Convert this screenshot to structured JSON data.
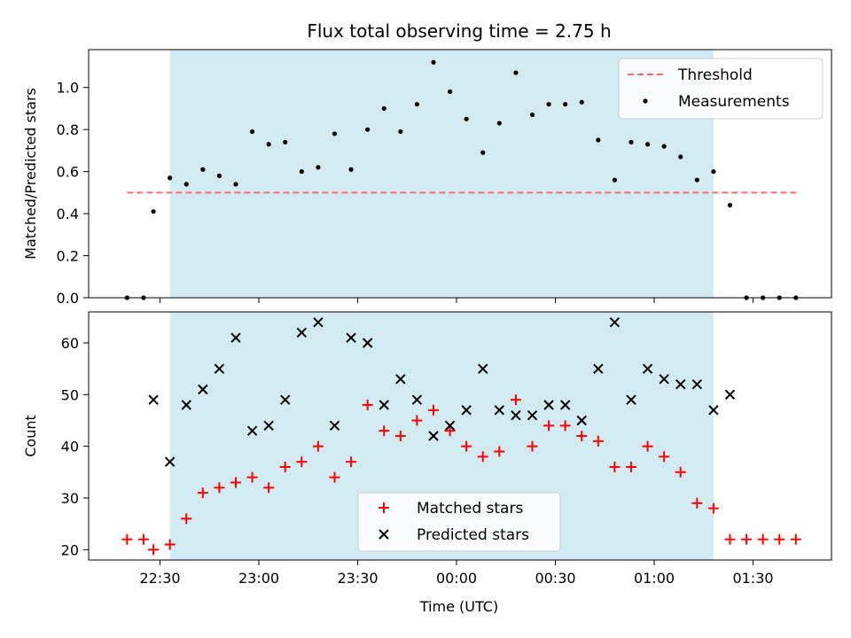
{
  "chart_data": [
    {
      "type": "scatter",
      "title": "Flux total observing time = 2.75 h",
      "ylabel": "Matched/Predicted stars",
      "xlabel": "",
      "ylim": [
        0,
        1.18
      ],
      "yticks": [
        "0.0",
        "0.2",
        "0.4",
        "0.6",
        "0.8",
        "1.0"
      ],
      "shaded_span": {
        "x_start": "22:33",
        "x_end": "01:18",
        "color": "#add8e6"
      },
      "legend_position": "top-right",
      "threshold": {
        "name": "Threshold",
        "value": 0.5,
        "x_start": "22:20",
        "x_end": "01:44",
        "color": "#ff6b6b",
        "style": "dashed"
      },
      "series": [
        {
          "name": "Measurements",
          "color": "#000000",
          "marker": "dot",
          "points": [
            {
              "x": "22:20",
              "y": 0.0
            },
            {
              "x": "22:25",
              "y": 0.0
            },
            {
              "x": "22:28",
              "y": 0.41
            },
            {
              "x": "22:33",
              "y": 0.57
            },
            {
              "x": "22:38",
              "y": 0.54
            },
            {
              "x": "22:43",
              "y": 0.61
            },
            {
              "x": "22:48",
              "y": 0.58
            },
            {
              "x": "22:53",
              "y": 0.54
            },
            {
              "x": "22:58",
              "y": 0.79
            },
            {
              "x": "23:03",
              "y": 0.73
            },
            {
              "x": "23:08",
              "y": 0.74
            },
            {
              "x": "23:13",
              "y": 0.6
            },
            {
              "x": "23:18",
              "y": 0.62
            },
            {
              "x": "23:23",
              "y": 0.78
            },
            {
              "x": "23:28",
              "y": 0.61
            },
            {
              "x": "23:33",
              "y": 0.8
            },
            {
              "x": "23:38",
              "y": 0.9
            },
            {
              "x": "23:43",
              "y": 0.79
            },
            {
              "x": "23:48",
              "y": 0.92
            },
            {
              "x": "23:53",
              "y": 1.12
            },
            {
              "x": "23:58",
              "y": 0.98
            },
            {
              "x": "00:03",
              "y": 0.85
            },
            {
              "x": "00:08",
              "y": 0.69
            },
            {
              "x": "00:13",
              "y": 0.83
            },
            {
              "x": "00:18",
              "y": 1.07
            },
            {
              "x": "00:23",
              "y": 0.87
            },
            {
              "x": "00:28",
              "y": 0.92
            },
            {
              "x": "00:33",
              "y": 0.92
            },
            {
              "x": "00:38",
              "y": 0.93
            },
            {
              "x": "00:43",
              "y": 0.75
            },
            {
              "x": "00:48",
              "y": 0.56
            },
            {
              "x": "00:53",
              "y": 0.74
            },
            {
              "x": "00:58",
              "y": 0.73
            },
            {
              "x": "01:03",
              "y": 0.72
            },
            {
              "x": "01:08",
              "y": 0.67
            },
            {
              "x": "01:13",
              "y": 0.56
            },
            {
              "x": "01:18",
              "y": 0.6
            },
            {
              "x": "01:23",
              "y": 0.44
            },
            {
              "x": "01:28",
              "y": 0.0
            },
            {
              "x": "01:33",
              "y": 0.0
            },
            {
              "x": "01:38",
              "y": 0.0
            },
            {
              "x": "01:43",
              "y": 0.0
            }
          ]
        }
      ]
    },
    {
      "type": "scatter",
      "title": "",
      "ylabel": "Count",
      "xlabel": "Time (UTC)",
      "ylim": [
        18,
        66
      ],
      "yticks": [
        "20",
        "30",
        "40",
        "50",
        "60"
      ],
      "xticks": [
        "22:30",
        "23:00",
        "23:30",
        "00:00",
        "00:30",
        "01:00",
        "01:30"
      ],
      "shaded_span": {
        "x_start": "22:33",
        "x_end": "01:18",
        "color": "#add8e6"
      },
      "legend_position": "bottom-center",
      "series": [
        {
          "name": "Matched stars",
          "color": "#ff0000",
          "marker": "plus",
          "points": [
            {
              "x": "22:20",
              "y": 22
            },
            {
              "x": "22:25",
              "y": 22
            },
            {
              "x": "22:28",
              "y": 20
            },
            {
              "x": "22:33",
              "y": 21
            },
            {
              "x": "22:38",
              "y": 26
            },
            {
              "x": "22:43",
              "y": 31
            },
            {
              "x": "22:48",
              "y": 32
            },
            {
              "x": "22:53",
              "y": 33
            },
            {
              "x": "22:58",
              "y": 34
            },
            {
              "x": "23:03",
              "y": 32
            },
            {
              "x": "23:08",
              "y": 36
            },
            {
              "x": "23:13",
              "y": 37
            },
            {
              "x": "23:18",
              "y": 40
            },
            {
              "x": "23:23",
              "y": 34
            },
            {
              "x": "23:28",
              "y": 37
            },
            {
              "x": "23:33",
              "y": 48
            },
            {
              "x": "23:38",
              "y": 43
            },
            {
              "x": "23:43",
              "y": 42
            },
            {
              "x": "23:48",
              "y": 45
            },
            {
              "x": "23:53",
              "y": 47
            },
            {
              "x": "23:58",
              "y": 43
            },
            {
              "x": "00:03",
              "y": 40
            },
            {
              "x": "00:08",
              "y": 38
            },
            {
              "x": "00:13",
              "y": 39
            },
            {
              "x": "00:18",
              "y": 49
            },
            {
              "x": "00:23",
              "y": 40
            },
            {
              "x": "00:28",
              "y": 44
            },
            {
              "x": "00:33",
              "y": 44
            },
            {
              "x": "00:38",
              "y": 42
            },
            {
              "x": "00:43",
              "y": 41
            },
            {
              "x": "00:48",
              "y": 36
            },
            {
              "x": "00:53",
              "y": 36
            },
            {
              "x": "00:58",
              "y": 40
            },
            {
              "x": "01:03",
              "y": 38
            },
            {
              "x": "01:08",
              "y": 35
            },
            {
              "x": "01:13",
              "y": 29
            },
            {
              "x": "01:18",
              "y": 28
            },
            {
              "x": "01:23",
              "y": 22
            },
            {
              "x": "01:28",
              "y": 22
            },
            {
              "x": "01:33",
              "y": 22
            },
            {
              "x": "01:38",
              "y": 22
            },
            {
              "x": "01:43",
              "y": 22
            }
          ]
        },
        {
          "name": "Predicted stars",
          "color": "#000000",
          "marker": "x",
          "points": [
            {
              "x": "22:28",
              "y": 49
            },
            {
              "x": "22:33",
              "y": 37
            },
            {
              "x": "22:38",
              "y": 48
            },
            {
              "x": "22:43",
              "y": 51
            },
            {
              "x": "22:48",
              "y": 55
            },
            {
              "x": "22:53",
              "y": 61
            },
            {
              "x": "22:58",
              "y": 43
            },
            {
              "x": "23:03",
              "y": 44
            },
            {
              "x": "23:08",
              "y": 49
            },
            {
              "x": "23:13",
              "y": 62
            },
            {
              "x": "23:18",
              "y": 64
            },
            {
              "x": "23:23",
              "y": 44
            },
            {
              "x": "23:28",
              "y": 61
            },
            {
              "x": "23:33",
              "y": 60
            },
            {
              "x": "23:38",
              "y": 48
            },
            {
              "x": "23:43",
              "y": 53
            },
            {
              "x": "23:48",
              "y": 49
            },
            {
              "x": "23:53",
              "y": 42
            },
            {
              "x": "23:58",
              "y": 44
            },
            {
              "x": "00:03",
              "y": 47
            },
            {
              "x": "00:08",
              "y": 55
            },
            {
              "x": "00:13",
              "y": 47
            },
            {
              "x": "00:18",
              "y": 46
            },
            {
              "x": "00:23",
              "y": 46
            },
            {
              "x": "00:28",
              "y": 48
            },
            {
              "x": "00:33",
              "y": 48
            },
            {
              "x": "00:38",
              "y": 45
            },
            {
              "x": "00:43",
              "y": 55
            },
            {
              "x": "00:48",
              "y": 64
            },
            {
              "x": "00:53",
              "y": 49
            },
            {
              "x": "00:58",
              "y": 55
            },
            {
              "x": "01:03",
              "y": 53
            },
            {
              "x": "01:08",
              "y": 52
            },
            {
              "x": "01:13",
              "y": 52
            },
            {
              "x": "01:18",
              "y": 47
            },
            {
              "x": "01:23",
              "y": 50
            }
          ]
        }
      ]
    }
  ]
}
